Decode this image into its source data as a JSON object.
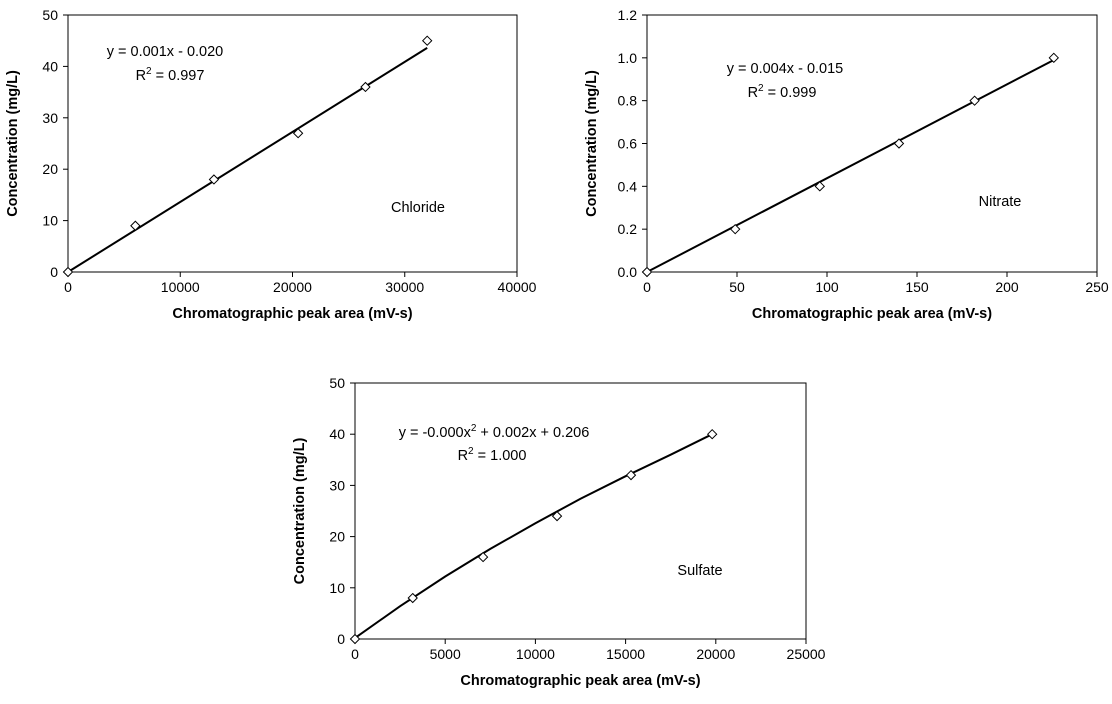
{
  "chart_data": [
    {
      "type": "scatter",
      "title": "",
      "annotation": "Chloride",
      "xlabel": "Chromatographic peak area (mV-s)",
      "ylabel": "Concentration (mg/L)",
      "xlim": [
        0,
        40000
      ],
      "ylim": [
        0,
        50
      ],
      "x_ticks": [
        "0",
        "10000",
        "20000",
        "30000",
        "40000"
      ],
      "y_ticks": [
        "0",
        "10",
        "20",
        "30",
        "40",
        "50"
      ],
      "grid": false,
      "trendline": {
        "kind": "linear",
        "equation_prefix": "y = 0.001x - 0.020",
        "r2_prefix": "R",
        "r2_sup": "2",
        "r2_suffix": " = 0.997",
        "x_range": [
          0,
          32000
        ],
        "y_range": [
          0,
          43.6
        ]
      },
      "series": [
        {
          "points": [
            {
              "x": 0,
              "y": 0
            },
            {
              "x": 6000,
              "y": 9
            },
            {
              "x": 13000,
              "y": 18
            },
            {
              "x": 20500,
              "y": 27
            },
            {
              "x": 26500,
              "y": 36
            },
            {
              "x": 32000,
              "y": 45
            }
          ]
        }
      ]
    },
    {
      "type": "scatter",
      "title": "",
      "annotation": "Nitrate",
      "xlabel": "Chromatographic peak area (mV-s)",
      "ylabel": "Concentration (mg/L)",
      "xlim": [
        0,
        250
      ],
      "ylim": [
        0,
        1.2
      ],
      "x_ticks": [
        "0",
        "50",
        "100",
        "150",
        "200",
        "250"
      ],
      "y_ticks": [
        "0.0",
        "0.2",
        "0.4",
        "0.6",
        "0.8",
        "1.0",
        "1.2"
      ],
      "grid": false,
      "trendline": {
        "kind": "linear",
        "equation_prefix": "y = 0.004x - 0.015",
        "r2_prefix": "R",
        "r2_sup": "2",
        "r2_suffix": " = 0.999",
        "x_range": [
          0,
          226
        ],
        "y_range": [
          0,
          0.99
        ]
      },
      "series": [
        {
          "points": [
            {
              "x": 0,
              "y": 0
            },
            {
              "x": 49,
              "y": 0.2
            },
            {
              "x": 96,
              "y": 0.4
            },
            {
              "x": 140,
              "y": 0.6
            },
            {
              "x": 182,
              "y": 0.8
            },
            {
              "x": 226,
              "y": 1.0
            }
          ]
        }
      ]
    },
    {
      "type": "scatter",
      "title": "",
      "annotation": "Sulfate",
      "xlabel": "Chromatographic peak area (mV-s)",
      "ylabel": "Concentration (mg/L)",
      "xlim": [
        0,
        25000
      ],
      "ylim": [
        0,
        50
      ],
      "x_ticks": [
        "0",
        "5000",
        "10000",
        "15000",
        "20000",
        "25000"
      ],
      "y_ticks": [
        "0",
        "10",
        "20",
        "30",
        "40",
        "50"
      ],
      "grid": false,
      "trendline": {
        "kind": "polynomial",
        "equation_prefix": "y = -0.000x",
        "equation_sup": "2",
        "equation_suffix": " + 0.002x + 0.206",
        "r2_prefix": "R",
        "r2_sup": "2",
        "r2_suffix": " = 1.000",
        "points": [
          {
            "x": 0,
            "y": 0.2
          },
          {
            "x": 2500,
            "y": 6.4
          },
          {
            "x": 5000,
            "y": 12.2
          },
          {
            "x": 7500,
            "y": 17.6
          },
          {
            "x": 10000,
            "y": 22.6
          },
          {
            "x": 12500,
            "y": 27.4
          },
          {
            "x": 15000,
            "y": 31.8
          },
          {
            "x": 17500,
            "y": 36.0
          },
          {
            "x": 19800,
            "y": 40.0
          }
        ]
      },
      "series": [
        {
          "points": [
            {
              "x": 0,
              "y": 0
            },
            {
              "x": 3200,
              "y": 8
            },
            {
              "x": 7100,
              "y": 16
            },
            {
              "x": 11200,
              "y": 24
            },
            {
              "x": 15300,
              "y": 32
            },
            {
              "x": 19800,
              "y": 40
            }
          ]
        }
      ]
    }
  ]
}
